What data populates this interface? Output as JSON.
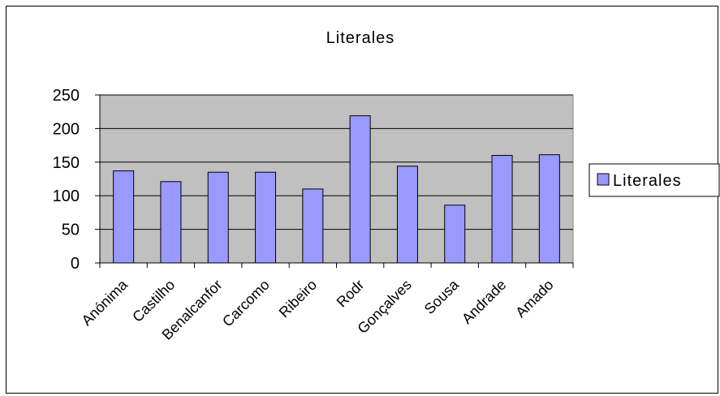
{
  "chart_data": {
    "type": "bar",
    "title": "Literales",
    "categories": [
      "Anónima",
      "Castilho",
      "Benalcanfor",
      "Carcomo",
      "Ribeiro",
      "Rodr",
      "Gonçalves",
      "Sousa",
      "Andrade",
      "Amado"
    ],
    "series": [
      {
        "name": "Literales",
        "values": [
          137,
          121,
          135,
          135,
          110,
          219,
          144,
          86,
          160,
          161
        ]
      }
    ],
    "ylim": [
      0,
      250
    ],
    "yticks": [
      "0",
      "50",
      "100",
      "150",
      "200",
      "250"
    ],
    "grid": true,
    "legend_position": "right",
    "colors": {
      "plot_background": "#c0c0c0",
      "bar_fill": "#9999ff",
      "bar_stroke": "#000000",
      "gridline": "#000000"
    }
  }
}
